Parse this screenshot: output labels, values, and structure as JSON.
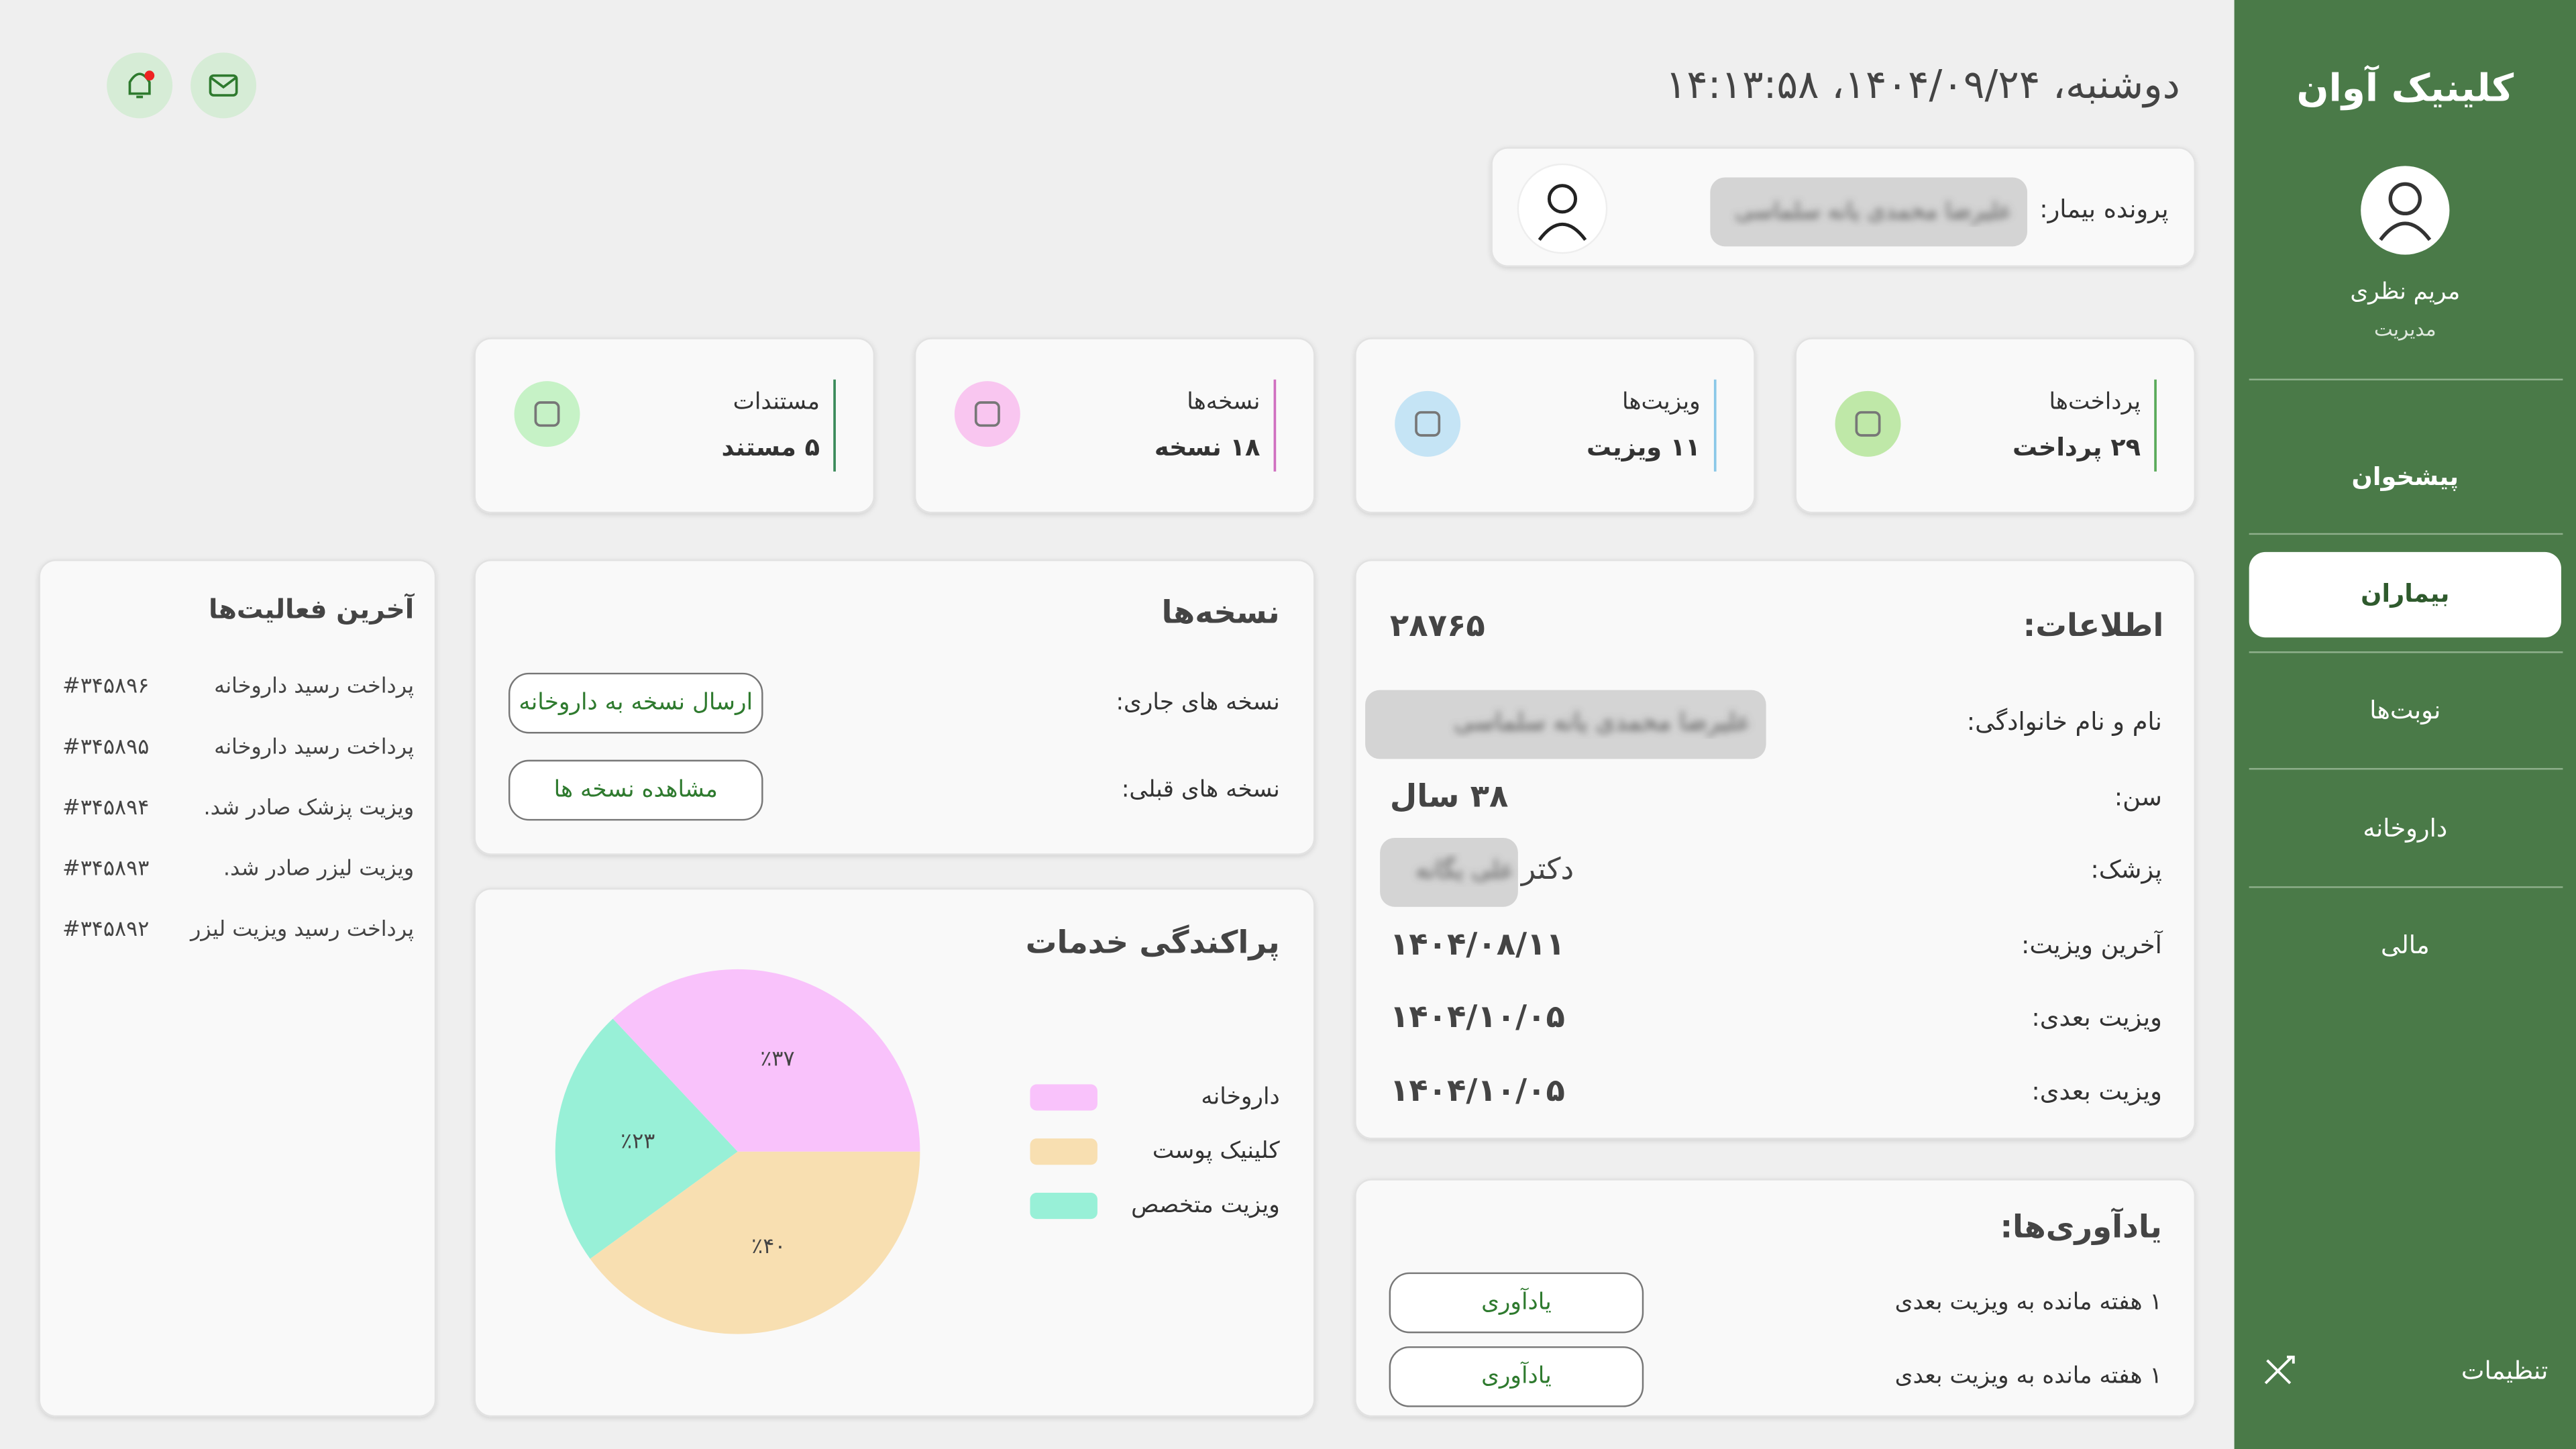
{
  "header": {
    "datetime": "دوشنبه، ۱۴۰۴/۰۹/۲۴، ۱۴:۱۳:۵۸"
  },
  "patient_file": {
    "label": "پرونده بیمار:",
    "name": "علیرضا محمدی یانه سلماسی"
  },
  "sidebar": {
    "title": "کلینیک آوان",
    "user": "مریم نظری",
    "role": "مدیریت",
    "menu": [
      "پیشخوان",
      "بیماران",
      "نوبت‌ها",
      "داروخانه",
      "مالی"
    ],
    "settings": "تنظیمات"
  },
  "stats": [
    {
      "title": "پرداخت‌ها",
      "value": "۲۹ پرداخت"
    },
    {
      "title": "ویزیت‌ها",
      "value": "۱۱ ویزیت"
    },
    {
      "title": "نسخه‌ها",
      "value": "۱۸ نسخه"
    },
    {
      "title": "مستندات",
      "value": "۵ مستند"
    }
  ],
  "info": {
    "title": "اطلاعات:",
    "id": "۲۸۷۶۵",
    "rows": [
      {
        "label": "نام و نام خانوادگی:",
        "value": "علیرضا محمدی یانه سلماسی"
      },
      {
        "label": "سن:",
        "value": "۳۸ سال"
      },
      {
        "label": "پزشک:",
        "prefix": "دکتر",
        "value": "علی یگانه"
      },
      {
        "label": "آخرین ویزیت:",
        "value": "۱۴۰۴/۰۸/۱۱"
      },
      {
        "label": "ویزیت بعدی:",
        "value": "۱۴۰۴/۱۰/۰۵"
      },
      {
        "label": "ویزیت بعدی:",
        "value": "۱۴۰۴/۱۰/۰۵"
      }
    ]
  },
  "reminders": {
    "title": "یادآوری‌ها:",
    "rows": [
      {
        "label": "۱ هفته مانده به ویزیت بعدی",
        "button": "یادآوری"
      },
      {
        "label": "۱ هفته مانده به ویزیت بعدی",
        "button": "یادآوری"
      }
    ]
  },
  "prescriptions": {
    "title": "نسخه‌ها",
    "rows": [
      {
        "label": "نسخه های جاری:",
        "button": "ارسال نسخه به داروخانه"
      },
      {
        "label": "نسخه های قبلی:",
        "button": "مشاهده نسخه ها"
      }
    ]
  },
  "activities": {
    "title": "آخرین فعالیت‌ها",
    "items": [
      {
        "text": "پرداخت رسید داروخانه",
        "code": "#۳۴۵۸۹۶"
      },
      {
        "text": "پرداخت رسید داروخانه",
        "code": "#۳۴۵۸۹۵"
      },
      {
        "text": "ویزیت پزشک صادر شد.",
        "code": "#۳۴۵۸۹۴"
      },
      {
        "text": "ویزیت لیزر صادر شد.",
        "code": "#۳۴۵۸۹۳"
      },
      {
        "text": "پرداخت رسید ویزیت لیزر",
        "code": "#۳۴۵۸۹۲"
      }
    ]
  },
  "chart_data": {
    "type": "pie",
    "title": "پراکندگی خدمات",
    "categories": [
      "داروخانه",
      "کلینیک پوست",
      "ویزیت متخصص"
    ],
    "values": [
      37,
      40,
      23
    ],
    "value_labels": [
      "٪۳۷",
      "٪۴۰",
      "٪۲۳"
    ],
    "colors": [
      "#f9c2fb",
      "#f8dfb1",
      "#98f0d7"
    ]
  }
}
